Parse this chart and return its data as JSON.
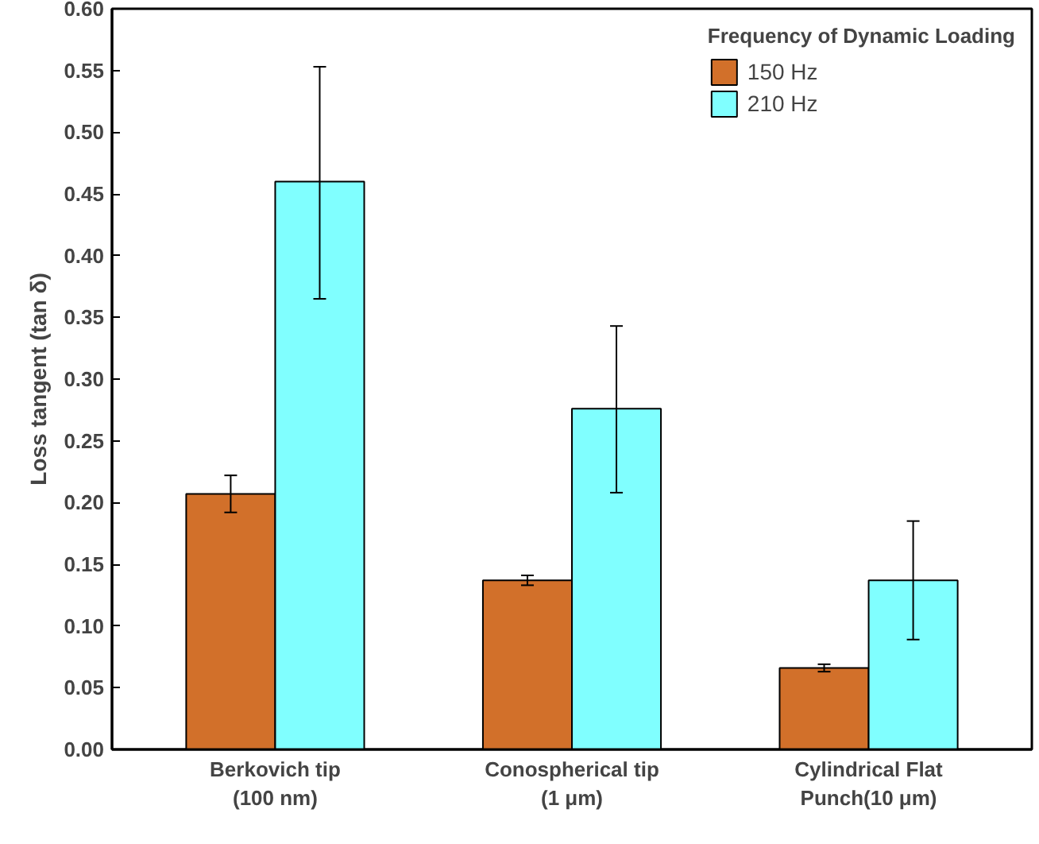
{
  "chart_data": {
    "type": "bar",
    "ylabel": "Loss tangent (tan δ)",
    "legend_title": "Frequency of Dynamic Loading",
    "legend": "top right",
    "grid": false,
    "categories": [
      "Berkovich tip\n(100 nm)",
      "Conospherical tip\n(1 μm)",
      "Cylindrical Flat\nPunch(10 μm)"
    ],
    "ylim": [
      0,
      0.6
    ],
    "yticks": [
      {
        "value": 0,
        "label": "0.00"
      },
      0.05,
      {
        "value": 0.1,
        "label": "0.10"
      },
      0.15,
      {
        "value": 0.2,
        "label": "0.20"
      },
      0.25,
      {
        "value": 0.3,
        "label": "0.30"
      },
      0.35,
      {
        "value": 0.4,
        "label": "0.40"
      },
      0.45,
      {
        "value": 0.5,
        "label": "0.50"
      },
      0.55,
      {
        "value": 0.6,
        "label": "0.60"
      }
    ],
    "series": [
      {
        "name": "150 Hz",
        "color": "#d2702a",
        "values": [
          0.207,
          0.137,
          0.066
        ],
        "errors": [
          [
            0.192,
            0.222
          ],
          [
            0.133,
            0.141
          ],
          [
            0.063,
            0.069
          ]
        ]
      },
      {
        "name": "210 Hz",
        "color": "#80ffff",
        "values": [
          0.46,
          0.276,
          0.137
        ],
        "errors": [
          [
            0.365,
            0.553
          ],
          [
            0.208,
            0.343
          ],
          [
            0.089,
            0.185
          ]
        ]
      }
    ]
  }
}
